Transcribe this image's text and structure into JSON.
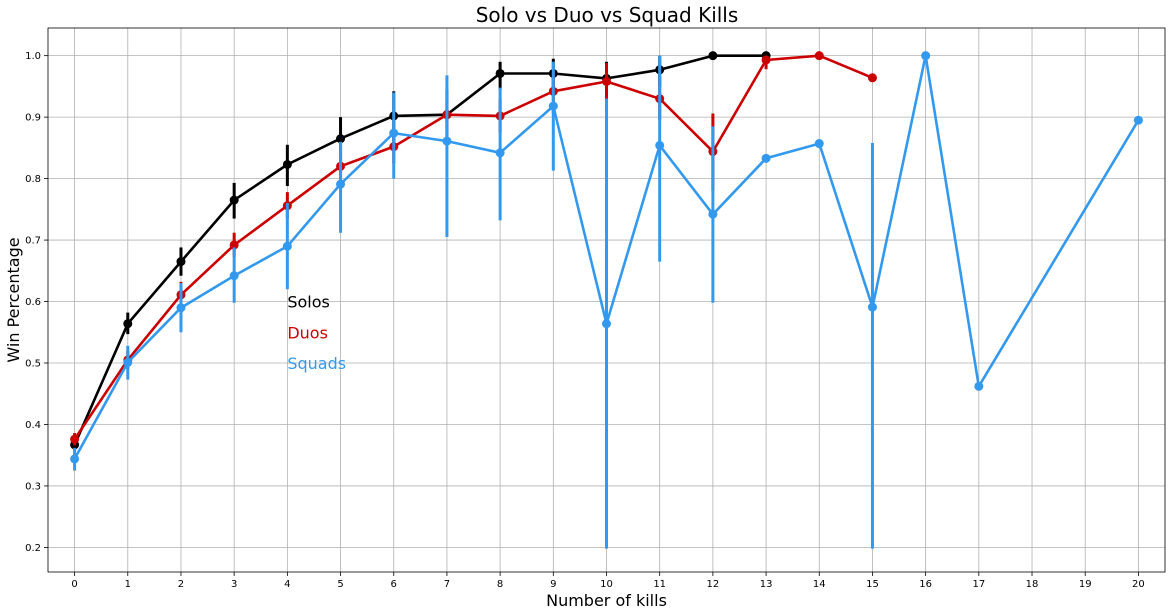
{
  "chart_data": {
    "type": "line",
    "title": "Solo vs Duo vs Squad Kills",
    "xlabel": "Number of kills",
    "ylabel": "Win Percentage",
    "x": [
      0,
      1,
      2,
      3,
      4,
      5,
      6,
      7,
      8,
      9,
      10,
      11,
      12,
      13,
      14,
      15,
      16,
      17,
      18,
      19,
      20
    ],
    "ylim": [
      0.16,
      1.045
    ],
    "yticks": [
      0.2,
      0.3,
      0.4,
      0.5,
      0.6,
      0.7,
      0.8,
      0.9,
      1.0
    ],
    "ytick_labels": [
      "0.2",
      "0.3",
      "0.4",
      "0.5",
      "0.6",
      "0.7",
      "0.8",
      "0.9",
      "1.0"
    ],
    "grid": true,
    "legend_placement": "center-left",
    "series": [
      {
        "name": "Solos",
        "color": "#000000",
        "points": [
          {
            "x": 0,
            "y": 0.367,
            "lo": 0.357,
            "hi": 0.377
          },
          {
            "x": 1,
            "y": 0.564,
            "lo": 0.547,
            "hi": 0.582
          },
          {
            "x": 2,
            "y": 0.665,
            "lo": 0.642,
            "hi": 0.688
          },
          {
            "x": 3,
            "y": 0.765,
            "lo": 0.735,
            "hi": 0.793
          },
          {
            "x": 4,
            "y": 0.823,
            "lo": 0.788,
            "hi": 0.855
          },
          {
            "x": 5,
            "y": 0.865,
            "lo": 0.826,
            "hi": 0.9
          },
          {
            "x": 6,
            "y": 0.902,
            "lo": 0.862,
            "hi": 0.942
          },
          {
            "x": 7,
            "y": 0.904,
            "lo": 0.858,
            "hi": 0.945
          },
          {
            "x": 8,
            "y": 0.971,
            "lo": 0.945,
            "hi": 0.99
          },
          {
            "x": 9,
            "y": 0.971,
            "lo": 0.94,
            "hi": 0.995
          },
          {
            "x": 10,
            "y": 0.963,
            "lo": 0.93,
            "hi": 0.99
          },
          {
            "x": 11,
            "y": 0.977,
            "lo": 0.95,
            "hi": 1.0
          },
          {
            "x": 12,
            "y": 1.0,
            "lo": 1.0,
            "hi": 1.0
          },
          {
            "x": 13,
            "y": 1.0,
            "lo": 1.0,
            "hi": 1.0
          }
        ]
      },
      {
        "name": "Duos",
        "color": "#cc0000",
        "points": [
          {
            "x": 0,
            "y": 0.376,
            "lo": 0.366,
            "hi": 0.386
          },
          {
            "x": 1,
            "y": 0.505,
            "lo": 0.49,
            "hi": 0.52
          },
          {
            "x": 2,
            "y": 0.611,
            "lo": 0.59,
            "hi": 0.632
          },
          {
            "x": 3,
            "y": 0.692,
            "lo": 0.673,
            "hi": 0.712
          },
          {
            "x": 4,
            "y": 0.756,
            "lo": 0.735,
            "hi": 0.778
          },
          {
            "x": 5,
            "y": 0.82,
            "lo": 0.8,
            "hi": 0.842
          },
          {
            "x": 6,
            "y": 0.852,
            "lo": 0.825,
            "hi": 0.878
          },
          {
            "x": 7,
            "y": 0.904,
            "lo": 0.88,
            "hi": 0.925
          },
          {
            "x": 8,
            "y": 0.902,
            "lo": 0.875,
            "hi": 0.93
          },
          {
            "x": 9,
            "y": 0.942,
            "lo": 0.905,
            "hi": 0.975
          },
          {
            "x": 10,
            "y": 0.958,
            "lo": 0.93,
            "hi": 0.988
          },
          {
            "x": 11,
            "y": 0.93,
            "lo": 0.895,
            "hi": 0.962
          },
          {
            "x": 12,
            "y": 0.844,
            "lo": 0.78,
            "hi": 0.906
          },
          {
            "x": 13,
            "y": 0.993,
            "lo": 0.978,
            "hi": 1.0
          },
          {
            "x": 14,
            "y": 1.0,
            "lo": 1.0,
            "hi": 1.0
          },
          {
            "x": 15,
            "y": 0.964,
            "lo": 0.964,
            "hi": 0.964
          }
        ]
      },
      {
        "name": "Squads",
        "color": "#3399ee",
        "points": [
          {
            "x": 0,
            "y": 0.344,
            "lo": 0.325,
            "hi": 0.362
          },
          {
            "x": 1,
            "y": 0.501,
            "lo": 0.473,
            "hi": 0.528
          },
          {
            "x": 2,
            "y": 0.59,
            "lo": 0.55,
            "hi": 0.63
          },
          {
            "x": 3,
            "y": 0.642,
            "lo": 0.598,
            "hi": 0.688
          },
          {
            "x": 4,
            "y": 0.69,
            "lo": 0.62,
            "hi": 0.76
          },
          {
            "x": 5,
            "y": 0.791,
            "lo": 0.712,
            "hi": 0.86
          },
          {
            "x": 6,
            "y": 0.874,
            "lo": 0.8,
            "hi": 0.94
          },
          {
            "x": 7,
            "y": 0.861,
            "lo": 0.705,
            "hi": 0.968
          },
          {
            "x": 8,
            "y": 0.842,
            "lo": 0.732,
            "hi": 0.948
          },
          {
            "x": 9,
            "y": 0.918,
            "lo": 0.813,
            "hi": 0.99
          },
          {
            "x": 10,
            "y": 0.564,
            "lo": 0.198,
            "hi": 0.93
          },
          {
            "x": 11,
            "y": 0.854,
            "lo": 0.665,
            "hi": 1.0
          },
          {
            "x": 12,
            "y": 0.742,
            "lo": 0.598,
            "hi": 0.885
          },
          {
            "x": 13,
            "y": 0.833,
            "lo": 0.833,
            "hi": 0.833
          },
          {
            "x": 14,
            "y": 0.857,
            "lo": 0.857,
            "hi": 0.857
          },
          {
            "x": 15,
            "y": 0.591,
            "lo": 0.198,
            "hi": 0.858
          },
          {
            "x": 16,
            "y": 1.0,
            "lo": 1.0,
            "hi": 1.0
          },
          {
            "x": 17,
            "y": 0.462,
            "lo": 0.462,
            "hi": 0.462
          },
          {
            "x": 20,
            "y": 0.895,
            "lo": 0.895,
            "hi": 0.895
          }
        ]
      }
    ],
    "annotations": [
      {
        "text": "Solos",
        "color": "#000000",
        "x": 4,
        "y": 0.6
      },
      {
        "text": "Duos",
        "color": "#cc0000",
        "x": 4,
        "y": 0.55
      },
      {
        "text": "Squads",
        "color": "#3399ee",
        "x": 4,
        "y": 0.5
      }
    ]
  }
}
